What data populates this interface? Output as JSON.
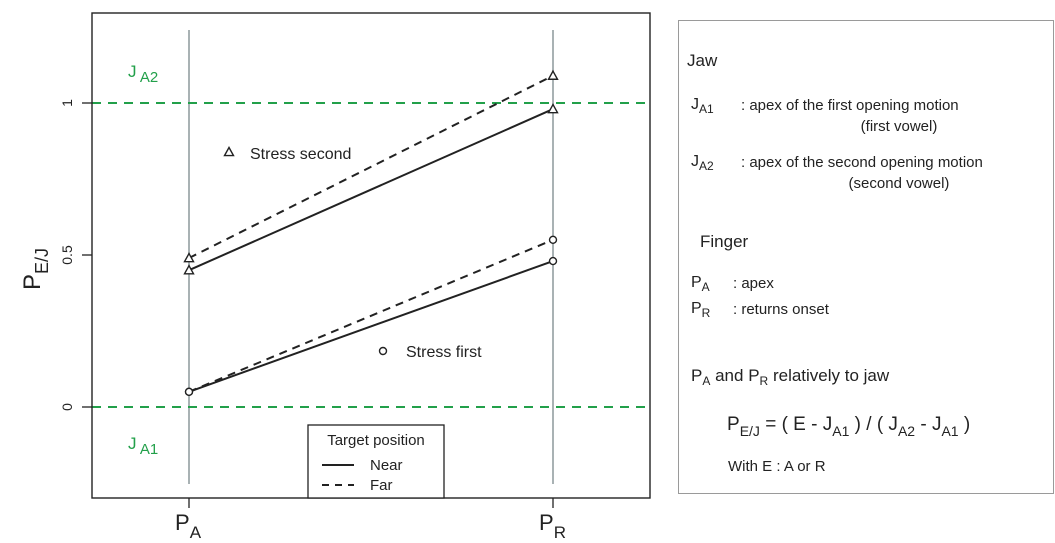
{
  "chart_data": {
    "type": "line",
    "x": [
      "P_A",
      "P_R"
    ],
    "ylabel": {
      "main": "P",
      "sub": "E/J"
    },
    "xticks": [
      {
        "main": "P",
        "sub": "A"
      },
      {
        "main": "P",
        "sub": "R"
      }
    ],
    "ylim": [
      -0.25,
      1.25
    ],
    "yticks": [
      0,
      0.5,
      1
    ],
    "yticklabels": [
      "0",
      "0.5",
      "1"
    ],
    "reference_lines": [
      {
        "y": 1,
        "label_main": "J",
        "label_sub": "A2",
        "color": "#22a04a",
        "style": "dashed"
      },
      {
        "y": 0,
        "label_main": "J",
        "label_sub": "A1",
        "color": "#22a04a",
        "style": "dashed"
      }
    ],
    "series": [
      {
        "group": "Stress second",
        "target": "Near",
        "marker": "triangle",
        "linestyle": "solid",
        "values": [
          0.45,
          0.98
        ]
      },
      {
        "group": "Stress second",
        "target": "Far",
        "marker": "triangle",
        "linestyle": "dashed",
        "values": [
          0.49,
          1.09
        ]
      },
      {
        "group": "Stress first",
        "target": "Near",
        "marker": "circle",
        "linestyle": "solid",
        "values": [
          0.05,
          0.48
        ]
      },
      {
        "group": "Stress first",
        "target": "Far",
        "marker": "circle",
        "linestyle": "dashed",
        "values": [
          0.05,
          0.55
        ]
      }
    ],
    "annotations": [
      {
        "text": "Stress second",
        "marker": "triangle"
      },
      {
        "text": "Stress first",
        "marker": "circle"
      }
    ],
    "legend": {
      "title": "Target position",
      "placement": "bottom-center",
      "entries": [
        {
          "label": "Near",
          "linestyle": "solid"
        },
        {
          "label": "Far",
          "linestyle": "dashed"
        }
      ]
    },
    "colors": {
      "line": "#222222",
      "vertical": "#a9b2b4",
      "reference": "#22a04a"
    },
    "grid": false
  },
  "side_panel": {
    "jaw_heading": "Jaw",
    "ja1_main": "J",
    "ja1_sub": "A1",
    "ja1_desc": ": apex of the first opening motion",
    "ja1_desc2": "(first vowel)",
    "ja2_main": "J",
    "ja2_sub": "A2",
    "ja2_desc": ": apex of the second opening motion",
    "ja2_desc2": "(second vowel)",
    "finger_heading": "Finger",
    "pa_main": "P",
    "pa_sub": "A",
    "pa_desc": ": apex",
    "pr_main": "P",
    "pr_sub": "R",
    "pr_desc": ": returns onset",
    "relative_p1": "P",
    "relative_s1": "A",
    "relative_mid": "and",
    "relative_p2": "P",
    "relative_s2": "R",
    "relative_tail": "relatively to jaw",
    "formula_p": "P",
    "formula_psub": "E/J",
    "formula_a": "= ( E  - J",
    "formula_asub": "A1",
    "formula_b": ") / ( J",
    "formula_bsub": "A2",
    "formula_c": "- J",
    "formula_csub": "A1",
    "formula_d": ")",
    "with_e": "With E : A or R"
  }
}
